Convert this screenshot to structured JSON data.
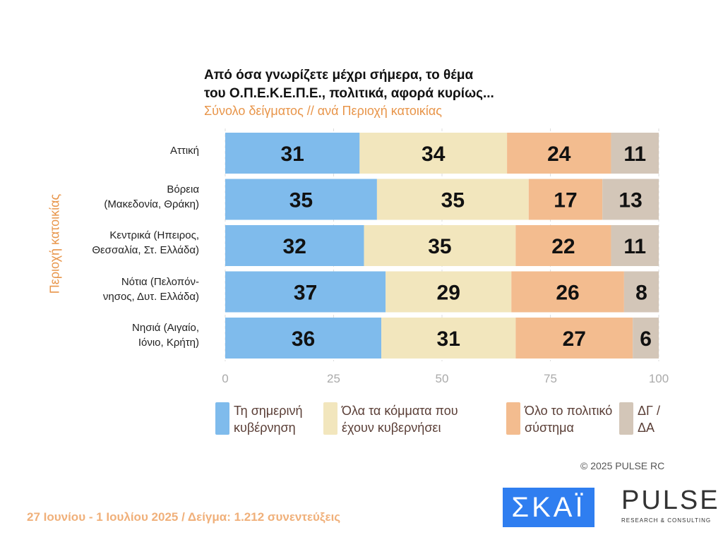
{
  "chart_data": {
    "type": "bar",
    "orientation": "horizontal-stacked",
    "title": "Από όσα γνωρίζετε μέχρι σήμερα, το θέμα του  Ο.Π.Ε.Κ.Ε.Π.Ε.,  πολιτικά, αφορά κυρίως...",
    "title_lines": [
      "Από όσα γνωρίζετε μέχρι σήμερα, το θέμα",
      "του  Ο.Π.Ε.Κ.Ε.Π.Ε.,  πολιτικά, αφορά κυρίως..."
    ],
    "subtitle": "Σύνολο δείγματος // ανά Περιοχή κατοικίας",
    "ylabel": "Περιοχή κατοικίας",
    "xlabel": "",
    "xlim": [
      0,
      100
    ],
    "xticks": [
      "0",
      "25",
      "50",
      "75",
      "100"
    ],
    "categories": [
      [
        "Αττική"
      ],
      [
        "Βόρεια",
        "(Μακεδονία, Θράκη)"
      ],
      [
        "Κεντρικά (Ηπειρος,",
        "Θεσσαλία, Στ. Ελλάδα)"
      ],
      [
        "Νότια (Πελοπόν-",
        "νησος, Δυτ. Ελλάδα)"
      ],
      [
        "Νησιά (Αιγαίο,",
        "Ιόνιο, Κρήτη)"
      ]
    ],
    "series": [
      {
        "name": "Τη σημερινή κυβέρνηση",
        "name_lines": [
          "Τη σημερινή",
          "κυβέρνηση"
        ],
        "color": "#7fbbec",
        "values": [
          31,
          35,
          32,
          37,
          36
        ]
      },
      {
        "name": "Όλα τα κόμματα που έχουν κυβερνήσει",
        "name_lines": [
          "Όλα τα κόμματα που",
          "έχουν κυβερνήσει"
        ],
        "color": "#f2e6bd",
        "values": [
          34,
          35,
          35,
          29,
          31
        ]
      },
      {
        "name": "Όλο το πολιτικό σύστημα",
        "name_lines": [
          "Όλο το πολιτικό",
          "σύστημα"
        ],
        "color": "#f3bc8f",
        "values": [
          24,
          17,
          22,
          26,
          27
        ]
      },
      {
        "name": "ΔΓ / ΔΑ",
        "name_lines": [
          "ΔΓ /",
          "ΔΑ"
        ],
        "color": "#d3c6b8",
        "values": [
          11,
          13,
          11,
          8,
          6
        ]
      }
    ],
    "legend": "bottom",
    "grid": true
  },
  "footer": {
    "copyright": "©  2025  PULSE RC",
    "dates": "27 Ιουνίου - 1 Ιουλίου 2025  /  Δείγμα:  1.212 συνεντεύξεις"
  },
  "logos": {
    "skai": "ΣΚΑΪ",
    "pulse": "PULSE",
    "pulse_sub": "RESEARCH & CONSULTING"
  }
}
